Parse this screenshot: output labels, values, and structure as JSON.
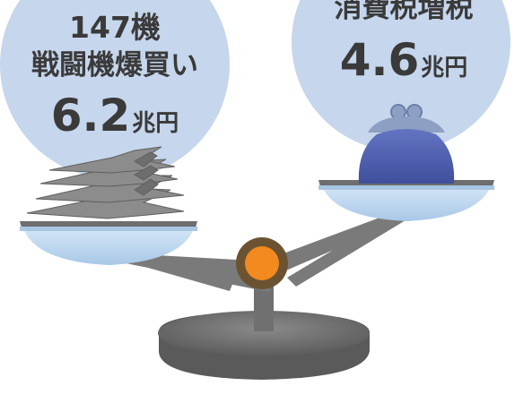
{
  "left_pan": {
    "count_label": "147機",
    "item_label": "戦闘機爆買い",
    "amount": "6.2",
    "unit": "兆円"
  },
  "right_pan": {
    "title": "消費税増税",
    "amount": "4.6",
    "unit": "兆円"
  },
  "icons": {
    "left_item": "fighter-jets-icon",
    "right_item": "coin-purse-icon",
    "device": "balance-scale"
  },
  "colors": {
    "circle_fill": "#c6d6ec",
    "pan_top": "#6e6e6e",
    "pan_bowl": "#bcd8f0",
    "scale_metal": "#7d7d7d",
    "pivot_orange": "#f28a1f",
    "pivot_ring": "#6b5332",
    "purse_blue": "#4f61b0",
    "jet_gray": "#8c8c8c",
    "text": "#3a3a3a"
  }
}
